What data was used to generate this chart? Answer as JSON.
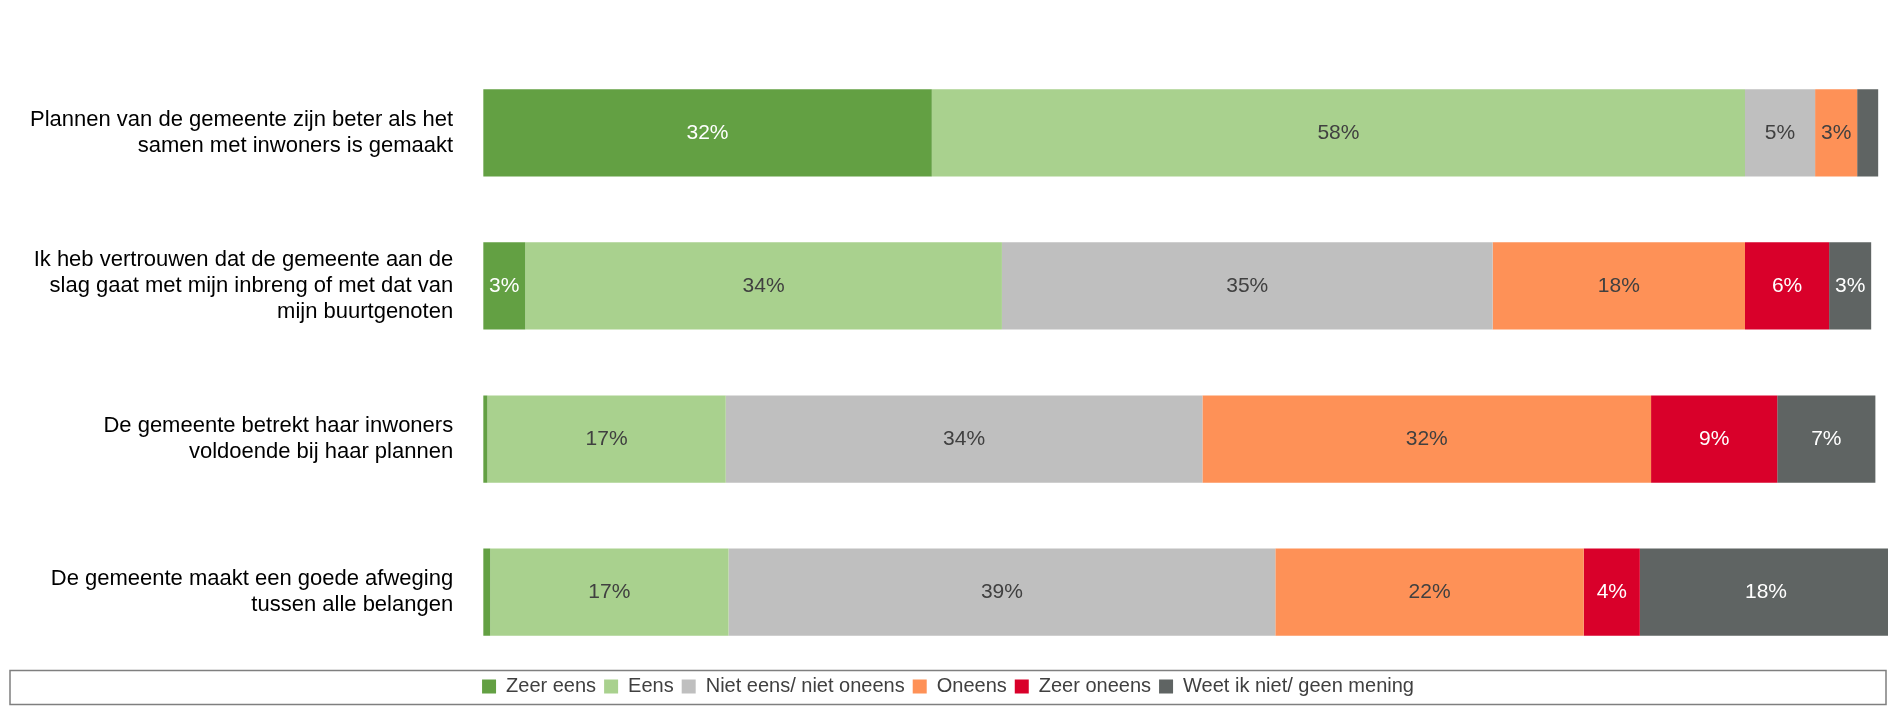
{
  "chart_data": {
    "type": "bar",
    "orientation": "horizontal",
    "stacked": true,
    "legend": "bottom",
    "categories": [
      "Plannen van de gemeente zijn beter als het\nsamen met inwoners is gemaakt",
      "Ik heb vertrouwen dat de gemeente aan de\nslag gaat met mijn inbreng of met dat van\nmijn buurtgenoten",
      "De gemeente betrekt haar inwoners\nvoldoende bij haar plannen",
      "De gemeente maakt een goede afweging\ntussen alle belangen"
    ],
    "series": [
      {
        "name": "Zeer eens",
        "color": "#63a043",
        "values": [
          32,
          3,
          0.3,
          0.5
        ],
        "value_labels": [
          "32%",
          "3%",
          null,
          null
        ]
      },
      {
        "name": "Eens",
        "color": "#a9d18e",
        "values": [
          58,
          34,
          17,
          17
        ],
        "value_labels": [
          "58%",
          "34%",
          "17%",
          "17%"
        ]
      },
      {
        "name": "Niet eens/ niet oneens",
        "color": "#bfbfbf",
        "values": [
          5,
          35,
          34,
          39
        ],
        "value_labels": [
          "5%",
          "35%",
          "34%",
          "39%"
        ]
      },
      {
        "name": "Oneens",
        "color": "#fe9157",
        "values": [
          3,
          18,
          32,
          22
        ],
        "value_labels": [
          "3%",
          "18%",
          "32%",
          "22%"
        ]
      },
      {
        "name": "Zeer oneens",
        "color": "#d9002a",
        "values": [
          0,
          6,
          9,
          4
        ],
        "value_labels": [
          null,
          "6%",
          "9%",
          "4%"
        ]
      },
      {
        "name": "Weet ik niet/ geen mening",
        "color": "#5f6463",
        "values": [
          1.5,
          3,
          7,
          18
        ],
        "value_labels": [
          null,
          "3%",
          "7%",
          "18%"
        ]
      }
    ]
  }
}
